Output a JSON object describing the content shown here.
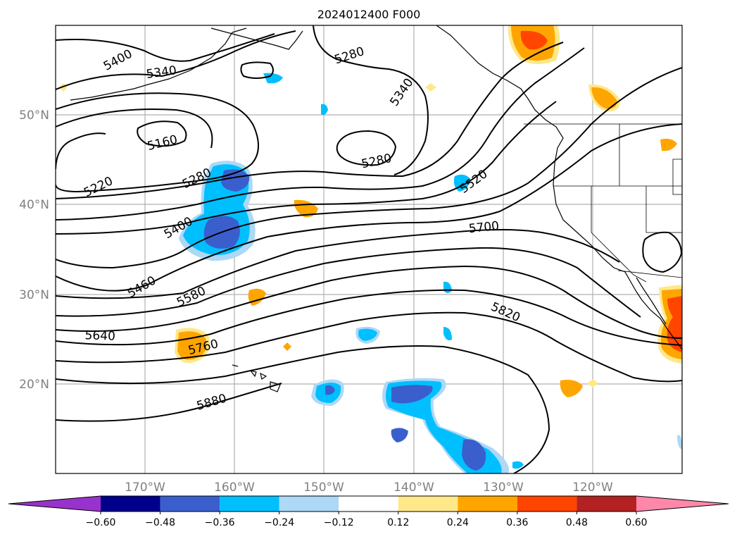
{
  "title": "2024012400 F000",
  "lat_ticks": [
    "50°N",
    "40°N",
    "30°N",
    "20°N"
  ],
  "lon_ticks": [
    "170°W",
    "160°W",
    "150°W",
    "140°W",
    "130°W",
    "120°W"
  ],
  "contour_labels": [
    "5400",
    "5340",
    "5280",
    "5340",
    "5160",
    "5220",
    "5280",
    "5280",
    "5520",
    "5400",
    "5700",
    "5460",
    "5580",
    "5820",
    "5640",
    "5760",
    "5880"
  ],
  "colorbar": {
    "ticks": [
      "−0.60",
      "−0.48",
      "−0.36",
      "−0.24",
      "−0.12",
      "0.12",
      "0.24",
      "0.36",
      "0.48",
      "0.60"
    ],
    "colors": [
      "#9932CC",
      "#00008B",
      "#3A5FCD",
      "#00BFFF",
      "#ADD8F6",
      "#FFFFFF",
      "#FFE88A",
      "#FFA500",
      "#FF4500",
      "#B22222",
      "#FF88AA"
    ]
  }
}
